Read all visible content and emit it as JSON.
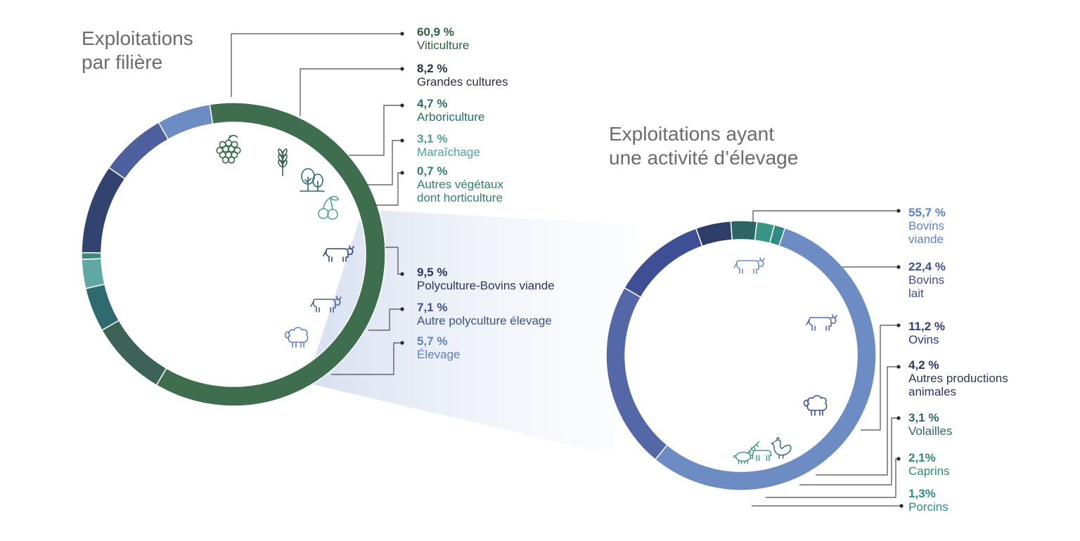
{
  "title_left": "Exploitations\npar filière",
  "title_right": "Exploitations ayant\nune activité d’élevage",
  "chart_data": [
    {
      "type": "pie",
      "title": "Exploitations par filière",
      "categories": [
        "Viticulture",
        "Grandes cultures",
        "Arboriculture",
        "Maraîchage",
        "Autres végétaux dont horticulture",
        "Polyculture-Bovins viande",
        "Autre polyculture élevage",
        "Élevage"
      ],
      "values": [
        60.9,
        8.2,
        4.7,
        3.1,
        0.7,
        9.5,
        7.1,
        5.7
      ],
      "labels": [
        "60,9 %",
        "8,2 %",
        "4,7 %",
        "3,1 %",
        "0,7 %",
        "9,5 %",
        "7,1 %",
        "5,7 %"
      ],
      "names": [
        "Viticulture",
        "Grandes cultures",
        "Arboriculture",
        "Maraîchage",
        "Autres végétaux\ndont horticulture",
        "Polyculture-Bovins viande",
        "Autre polyculture élevage",
        "Élevage"
      ],
      "colors": [
        "#3f6e4f",
        "#3d6258",
        "#2f6a70",
        "#5fa8a6",
        "#3b8c7c",
        "#33436f",
        "#4d5f9c",
        "#6d8cc4"
      ],
      "label_colors": [
        "#2f5e3f",
        "#2b3040",
        "#2c6a68",
        "#4fa09c",
        "#2f7f72",
        "#2b3560",
        "#3d4f8c",
        "#5e82c0"
      ],
      "icons": [
        "grapes-icon",
        "wheat-icon",
        "trees-icon",
        "cherries-icon",
        "cow-icon",
        "cow-icon",
        "sheep-icon"
      ]
    },
    {
      "type": "pie",
      "title": "Exploitations ayant une activité d’élevage",
      "categories": [
        "Bovins viande",
        "Bovins lait",
        "Ovins",
        "Autres productions animales",
        "Volailles",
        "Caprins",
        "Porcins"
      ],
      "values": [
        55.7,
        22.4,
        11.2,
        4.2,
        3.1,
        2.1,
        1.3
      ],
      "labels": [
        "55,7 %",
        "22,4 %",
        "11,2 %",
        "4,2 %",
        "3,1 %",
        "2,1%",
        "1,3%"
      ],
      "names": [
        "Bovins\nviande",
        "Bovins\nlait",
        "Ovins",
        "Autres productions\nanimales",
        "Volailles",
        "Caprins",
        "Porcins"
      ],
      "colors": [
        "#6d8cc4",
        "#5467a7",
        "#3e4f95",
        "#2f3d6a",
        "#2d6667",
        "#3a9585",
        "#2f8a86"
      ],
      "label_colors": [
        "#5e82c0",
        "#3e4f95",
        "#2f3d80",
        "#2b3560",
        "#2d6667",
        "#2f8a72",
        "#2f8a86"
      ],
      "icons": [
        "cow-icon",
        "cow-icon",
        "sheep-icon",
        "chicken-icon",
        "goat-icon",
        "pig-icon"
      ]
    }
  ]
}
